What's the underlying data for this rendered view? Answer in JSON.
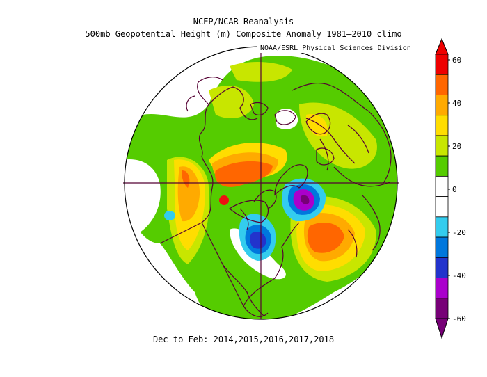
{
  "title": {
    "line1": "NCEP/NCAR Reanalysis",
    "line2": "500mb Geopotential Height (m) Composite Anomaly 1981–2010 climo"
  },
  "credit": "NOAA/ESRL Physical Sciences Division",
  "footer": "Dec to Feb: 2014,2015,2016,2017,2018",
  "colorbar": {
    "labels": [
      "60",
      "40",
      "20",
      "0",
      "-20",
      "-40",
      "-60"
    ],
    "colors": [
      "#ee0000",
      "#ff6600",
      "#ffaa00",
      "#ffdd00",
      "#c8e600",
      "#55cc00",
      "#ffffff",
      "#ffffff",
      "#33ccee",
      "#0077dd",
      "#2233cc",
      "#aa00cc",
      "#770077"
    ]
  },
  "map": {
    "projection": "north polar stereographic",
    "colors": {
      "green": "#55cc00",
      "lightgreen": "#c8e600",
      "yellow": "#ffdd00",
      "lightorange": "#ffaa00",
      "orange": "#ff6600",
      "red": "#ee1111",
      "cyan": "#33ccee",
      "blue": "#0077dd",
      "darkblue": "#2233cc",
      "purple": "#aa00cc",
      "darkpurple": "#770077",
      "coast": "#550033"
    }
  }
}
